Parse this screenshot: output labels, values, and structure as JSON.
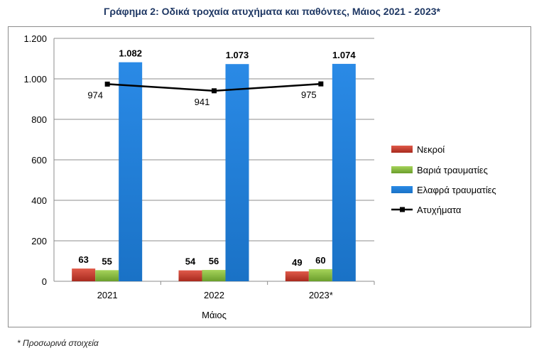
{
  "title": "Γράφημα 2: Οδικά τροχαία ατυχήματα και παθόντες, Μάιος 2021 - 2023*",
  "footnote": "* Προσωρινά στοιχεία",
  "chart_data": {
    "type": "bar",
    "categories": [
      "2021",
      "2022",
      "2023*"
    ],
    "xlabel": "Μάιος",
    "ylabel": "",
    "ylim": [
      0,
      1200
    ],
    "yticks": [
      0,
      200,
      400,
      600,
      800,
      1000,
      1200
    ],
    "ytick_labels": [
      "0",
      "200",
      "400",
      "600",
      "800",
      "1.000",
      "1.200"
    ],
    "grid": true,
    "legend_position": "right",
    "series": [
      {
        "name": "Νεκροί",
        "type": "bar",
        "color": "#c0392b",
        "values": [
          63,
          54,
          49
        ],
        "labels": [
          "63",
          "54",
          "49"
        ]
      },
      {
        "name": "Βαριά τραυματίες",
        "type": "bar",
        "color": "#7fb13d",
        "values": [
          55,
          56,
          60
        ],
        "labels": [
          "55",
          "56",
          "60"
        ]
      },
      {
        "name": "Ελαφρά τραυματίες",
        "type": "bar",
        "color": "#1e7fd6",
        "values": [
          1082,
          1073,
          1074
        ],
        "labels": [
          "1.082",
          "1.073",
          "1.074"
        ]
      },
      {
        "name": "Ατυχήματα",
        "type": "line",
        "color": "#000000",
        "values": [
          974,
          941,
          975
        ],
        "labels": [
          "974",
          "941",
          "975"
        ]
      }
    ]
  }
}
